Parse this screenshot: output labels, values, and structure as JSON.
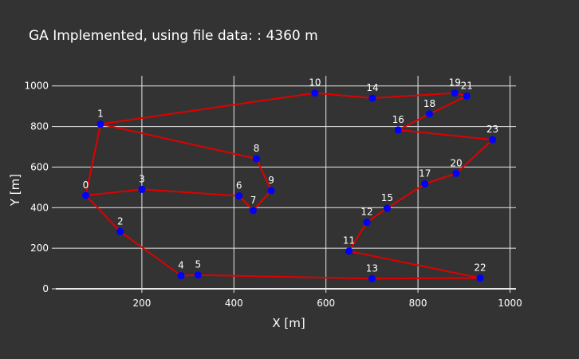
{
  "chart_data": {
    "type": "line",
    "title": "GA Implemented, using file data: :  4360 m",
    "xlabel": "X [m]",
    "ylabel": "Y [m]",
    "xlim": [
      13,
      1013
    ],
    "ylim": [
      0,
      1050
    ],
    "xticks": [
      200,
      400,
      600,
      800,
      1000
    ],
    "yticks": [
      0,
      200,
      400,
      600,
      800,
      1000
    ],
    "grid": true,
    "colors": {
      "background": "#333333",
      "grid": "#e8e8e8",
      "route": "#e00000",
      "point": "#0000ff",
      "text": "#ffffff"
    },
    "points": [
      {
        "label": "0",
        "x": 78,
        "y": 460
      },
      {
        "label": "1",
        "x": 110,
        "y": 812
      },
      {
        "label": "2",
        "x": 153,
        "y": 282
      },
      {
        "label": "3",
        "x": 200,
        "y": 490
      },
      {
        "label": "4",
        "x": 285,
        "y": 65
      },
      {
        "label": "5",
        "x": 322,
        "y": 68
      },
      {
        "label": "6",
        "x": 411,
        "y": 458
      },
      {
        "label": "7",
        "x": 442,
        "y": 386
      },
      {
        "label": "8",
        "x": 449,
        "y": 641
      },
      {
        "label": "9",
        "x": 481,
        "y": 484
      },
      {
        "label": "10",
        "x": 576,
        "y": 965
      },
      {
        "label": "11",
        "x": 650,
        "y": 186
      },
      {
        "label": "12",
        "x": 689,
        "y": 328
      },
      {
        "label": "13",
        "x": 700,
        "y": 50
      },
      {
        "label": "14",
        "x": 701,
        "y": 940
      },
      {
        "label": "15",
        "x": 733,
        "y": 397
      },
      {
        "label": "16",
        "x": 757,
        "y": 783
      },
      {
        "label": "17",
        "x": 815,
        "y": 517
      },
      {
        "label": "18",
        "x": 825,
        "y": 862
      },
      {
        "label": "19",
        "x": 880,
        "y": 965
      },
      {
        "label": "20",
        "x": 883,
        "y": 569
      },
      {
        "label": "21",
        "x": 906,
        "y": 950
      },
      {
        "label": "22",
        "x": 935,
        "y": 53
      },
      {
        "label": "23",
        "x": 962,
        "y": 735
      }
    ],
    "route": [
      0,
      1,
      8,
      9,
      7,
      6,
      3,
      0,
      2,
      4,
      5,
      13,
      22,
      11,
      12,
      15,
      17,
      20,
      23,
      16,
      18,
      21,
      19,
      14,
      10,
      1
    ]
  }
}
